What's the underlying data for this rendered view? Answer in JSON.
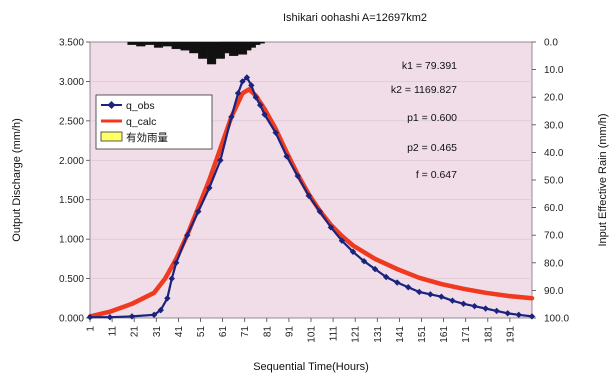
{
  "chart_data": {
    "type": "line",
    "title": "Ishikari oohashi    A=12697km2",
    "xlabel": "Sequential Time(Hours)",
    "ylabel": "Output Discharge (mm/h)",
    "y2label": "Input Effective Rain (mm/h)",
    "xlim": [
      1,
      201
    ],
    "ylim": [
      0,
      3.5
    ],
    "y2lim": [
      0,
      100
    ],
    "y2_inverted": true,
    "x_ticks": [
      "1",
      "11",
      "21",
      "31",
      "41",
      "51",
      "61",
      "71",
      "81",
      "91",
      "101",
      "111",
      "121",
      "131",
      "141",
      "151",
      "161",
      "171",
      "181",
      "191"
    ],
    "y_ticks": [
      "0.000",
      "0.500",
      "1.000",
      "1.500",
      "2.000",
      "2.500",
      "3.000",
      "3.500"
    ],
    "y2_ticks": [
      "0.0",
      "10.0",
      "20.0",
      "30.0",
      "40.0",
      "50.0",
      "60.0",
      "70.0",
      "80.0",
      "90.0",
      "100.0"
    ],
    "legend_position": "top-left",
    "series": [
      {
        "name": "q_obs",
        "color": "#1a237e",
        "marker": "diamond",
        "x": [
          1,
          10,
          20,
          30,
          33,
          36,
          38,
          40,
          45,
          50,
          55,
          60,
          65,
          68,
          70,
          72,
          74,
          76,
          78,
          80,
          85,
          90,
          95,
          100,
          105,
          110,
          115,
          120,
          125,
          130,
          135,
          140,
          145,
          150,
          155,
          160,
          165,
          170,
          175,
          180,
          185,
          190,
          195,
          201
        ],
        "values": [
          0.01,
          0.01,
          0.02,
          0.04,
          0.1,
          0.25,
          0.5,
          0.7,
          1.05,
          1.35,
          1.65,
          2.0,
          2.55,
          2.85,
          3.0,
          3.05,
          2.95,
          2.8,
          2.7,
          2.58,
          2.35,
          2.05,
          1.8,
          1.55,
          1.35,
          1.15,
          0.98,
          0.84,
          0.72,
          0.62,
          0.52,
          0.45,
          0.39,
          0.33,
          0.3,
          0.27,
          0.22,
          0.18,
          0.15,
          0.12,
          0.09,
          0.06,
          0.04,
          0.02
        ]
      },
      {
        "name": "q_calc",
        "color": "#ef3a1f",
        "x": [
          1,
          10,
          20,
          30,
          35,
          40,
          45,
          50,
          55,
          60,
          65,
          70,
          73,
          76,
          80,
          85,
          90,
          95,
          100,
          105,
          110,
          115,
          120,
          130,
          140,
          150,
          160,
          170,
          180,
          190,
          201
        ],
        "values": [
          0.02,
          0.08,
          0.18,
          0.32,
          0.5,
          0.75,
          1.05,
          1.4,
          1.75,
          2.15,
          2.55,
          2.85,
          2.9,
          2.82,
          2.65,
          2.4,
          2.1,
          1.82,
          1.57,
          1.36,
          1.18,
          1.04,
          0.92,
          0.75,
          0.62,
          0.51,
          0.43,
          0.37,
          0.32,
          0.28,
          0.25
        ]
      },
      {
        "name": "有効雨量",
        "color": "#ffff66",
        "axis": "y2",
        "chart": "bar-from-top",
        "x": [
          20,
          24,
          28,
          32,
          36,
          40,
          44,
          48,
          52,
          56,
          60,
          62,
          64,
          66,
          68,
          70,
          72,
          74,
          76,
          78
        ],
        "values": [
          1,
          1.5,
          1,
          2,
          1.5,
          2.5,
          3,
          4,
          6,
          8,
          6,
          4,
          3,
          5,
          3.5,
          4.5,
          3,
          2,
          1,
          0.5
        ]
      }
    ],
    "annotations": [
      "k1 = 79.391",
      "k2 = 1169.827",
      "p1 = 0.600",
      "p2 = 0.465",
      "f = 0.647"
    ]
  }
}
